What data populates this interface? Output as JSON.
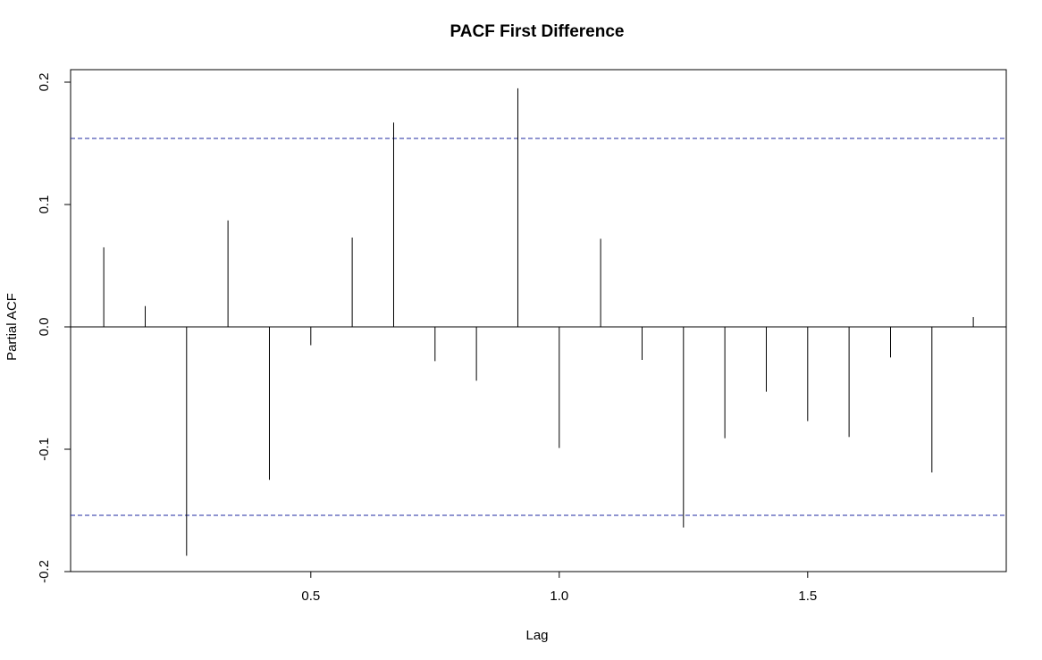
{
  "chart_data": {
    "type": "bar",
    "title": "PACF First Difference",
    "xlabel": "Lag",
    "ylabel": "Partial ACF",
    "xlim": [
      0.0,
      1.9
    ],
    "ylim": [
      -0.2,
      0.21
    ],
    "x_ticks": [
      0.5,
      1.0,
      1.5
    ],
    "x_tick_labels": [
      "0.5",
      "1.0",
      "1.5"
    ],
    "y_ticks": [
      -0.2,
      -0.1,
      0.0,
      0.1,
      0.2
    ],
    "y_tick_labels": [
      "-0.2",
      "-0.1",
      "0.0",
      "0.1",
      "0.2"
    ],
    "confidence_bounds": [
      0.154,
      -0.154
    ],
    "lags": [
      0.0833,
      0.1667,
      0.25,
      0.3333,
      0.4167,
      0.5,
      0.5833,
      0.6667,
      0.75,
      0.8333,
      0.9167,
      1.0,
      1.0833,
      1.1667,
      1.25,
      1.3333,
      1.4167,
      1.5,
      1.5833,
      1.6667,
      1.75,
      1.8333
    ],
    "values": [
      0.065,
      0.017,
      -0.187,
      0.087,
      -0.125,
      -0.015,
      0.073,
      0.167,
      -0.028,
      -0.044,
      0.195,
      -0.099,
      0.072,
      -0.027,
      -0.164,
      -0.091,
      -0.053,
      -0.077,
      -0.09,
      -0.025,
      -0.119,
      0.008
    ],
    "grid": false,
    "colors": {
      "bars": "#000000",
      "bounds": "#1f2aa0",
      "zero_line": "#000000"
    }
  }
}
